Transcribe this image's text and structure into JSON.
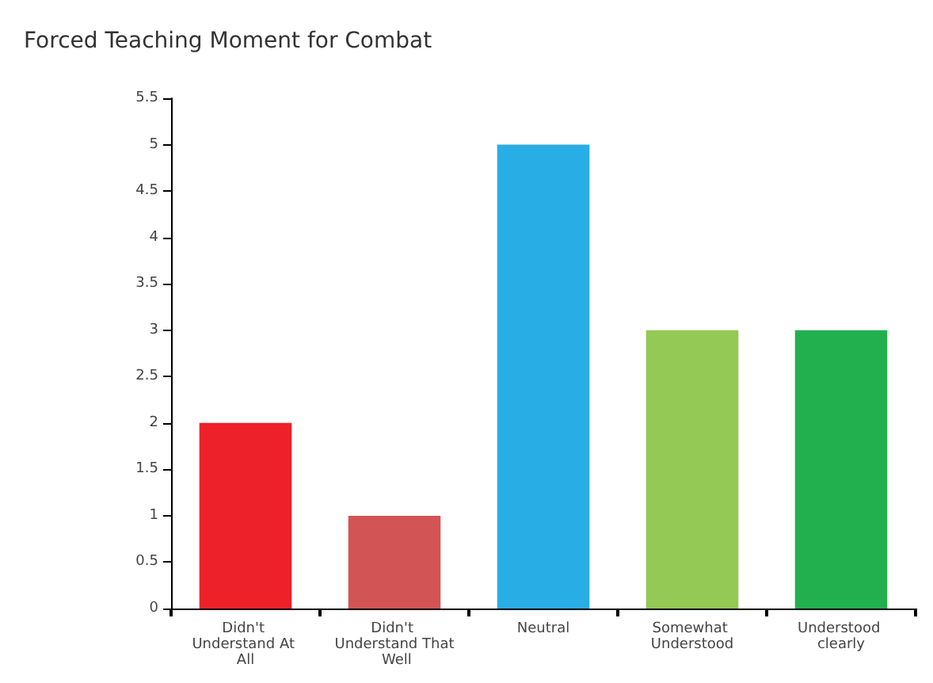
{
  "chart_data": {
    "type": "bar",
    "title": "Forced Teaching Moment for Combat",
    "categories": [
      "Didn't Understand At All",
      "Didn't Understand That Well",
      "Neutral",
      "Somewhat Understood",
      "Understood clearly"
    ],
    "values": [
      2,
      1,
      5,
      3,
      3
    ],
    "colors": [
      "#ed2129",
      "#d35455",
      "#28aee4",
      "#93c954",
      "#22b04f"
    ],
    "ylim": [
      0,
      5.5
    ],
    "yticks": [
      0,
      0.5,
      1,
      1.5,
      2,
      2.5,
      3,
      3.5,
      4,
      4.5,
      5,
      5.5
    ],
    "grid": false
  }
}
